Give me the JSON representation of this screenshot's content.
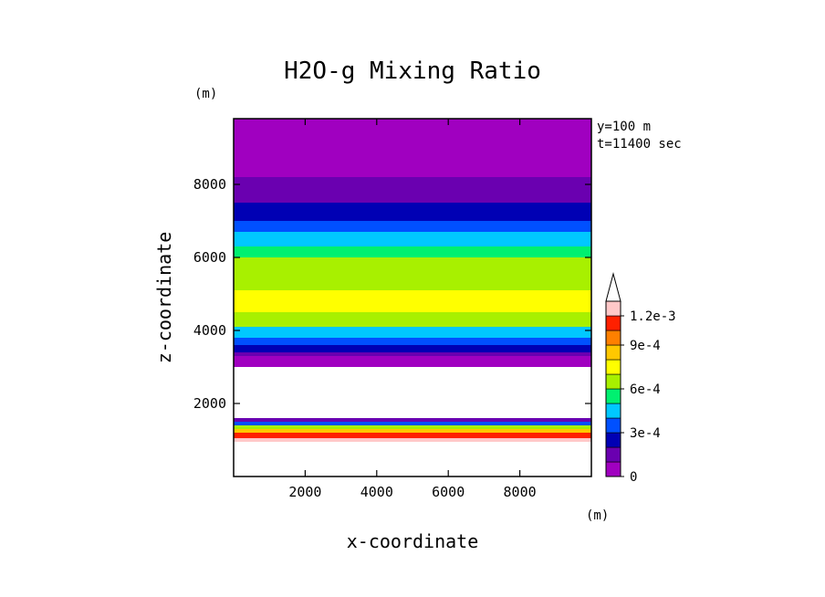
{
  "chart_data": {
    "type": "heatmap",
    "title": "H2O-g Mixing Ratio",
    "xlabel": "x-coordinate",
    "ylabel": "z-coordinate",
    "x_unit": "(m)",
    "y_unit": "(m)",
    "xlim": [
      0,
      10000
    ],
    "ylim": [
      0,
      9800
    ],
    "xticks": [
      2000,
      4000,
      6000,
      8000
    ],
    "yticks": [
      2000,
      4000,
      6000,
      8000
    ],
    "annotations": [
      "y=100 m",
      "t=11400 sec"
    ],
    "colorbar": {
      "levels": [
        0,
        0.00015,
        0.0003,
        0.00045,
        0.0006,
        0.00075,
        0.0009,
        0.00105,
        0.0012
      ],
      "tick_labels": [
        "0",
        "3e-4",
        "6e-4",
        "9e-4",
        "1.2e-3"
      ],
      "tick_values": [
        0,
        0.0003,
        0.0006,
        0.0009,
        0.0012
      ],
      "colors": [
        "#a000c0",
        "#6a00b0",
        "#0000b4",
        "#0050ff",
        "#00c8ff",
        "#00f070",
        "#a8f000",
        "#ffff00",
        "#ffc800",
        "#ff8000",
        "#ff2000",
        "#ffc8c8"
      ],
      "extend": "max",
      "extend_color": "#ffffff"
    },
    "bands": [
      {
        "z_bottom": 8800,
        "z_top": 9800,
        "value": 2e-05
      },
      {
        "z_bottom": 8200,
        "z_top": 8800,
        "value": 8e-05
      },
      {
        "z_bottom": 7500,
        "z_top": 8200,
        "value": 0.00015
      },
      {
        "z_bottom": 7000,
        "z_top": 7500,
        "value": 0.00022
      },
      {
        "z_bottom": 6700,
        "z_top": 7000,
        "value": 0.0003
      },
      {
        "z_bottom": 6300,
        "z_top": 6700,
        "value": 0.0004
      },
      {
        "z_bottom": 6000,
        "z_top": 6300,
        "value": 0.0005
      },
      {
        "z_bottom": 5600,
        "z_top": 6000,
        "value": 0.0006
      },
      {
        "z_bottom": 5100,
        "z_top": 5600,
        "value": 0.00068
      },
      {
        "z_bottom": 4500,
        "z_top": 5100,
        "value": 0.00076
      },
      {
        "z_bottom": 4100,
        "z_top": 4500,
        "value": 0.00062
      },
      {
        "z_bottom": 3800,
        "z_top": 4100,
        "value": 0.00045
      },
      {
        "z_bottom": 3600,
        "z_top": 3800,
        "value": 0.0003
      },
      {
        "z_bottom": 3400,
        "z_top": 3600,
        "value": 0.0002
      },
      {
        "z_bottom": 3300,
        "z_top": 3400,
        "value": 0.0001
      },
      {
        "z_bottom": 3000,
        "z_top": 3300,
        "value": 5e-05
      },
      {
        "z_bottom": 1600,
        "z_top": 3000,
        "value": 0.0013
      },
      {
        "z_bottom": 1500,
        "z_top": 1600,
        "value": 0.0001
      },
      {
        "z_bottom": 1400,
        "z_top": 1500,
        "value": 0.0003
      },
      {
        "z_bottom": 1300,
        "z_top": 1400,
        "value": 0.0006
      },
      {
        "z_bottom": 1200,
        "z_top": 1300,
        "value": 0.0008
      },
      {
        "z_bottom": 1050,
        "z_top": 1200,
        "value": 0.001
      },
      {
        "z_bottom": 950,
        "z_top": 1050,
        "value": 0.00115
      },
      {
        "z_bottom": 0,
        "z_top": 950,
        "value": 0.00125
      }
    ]
  }
}
